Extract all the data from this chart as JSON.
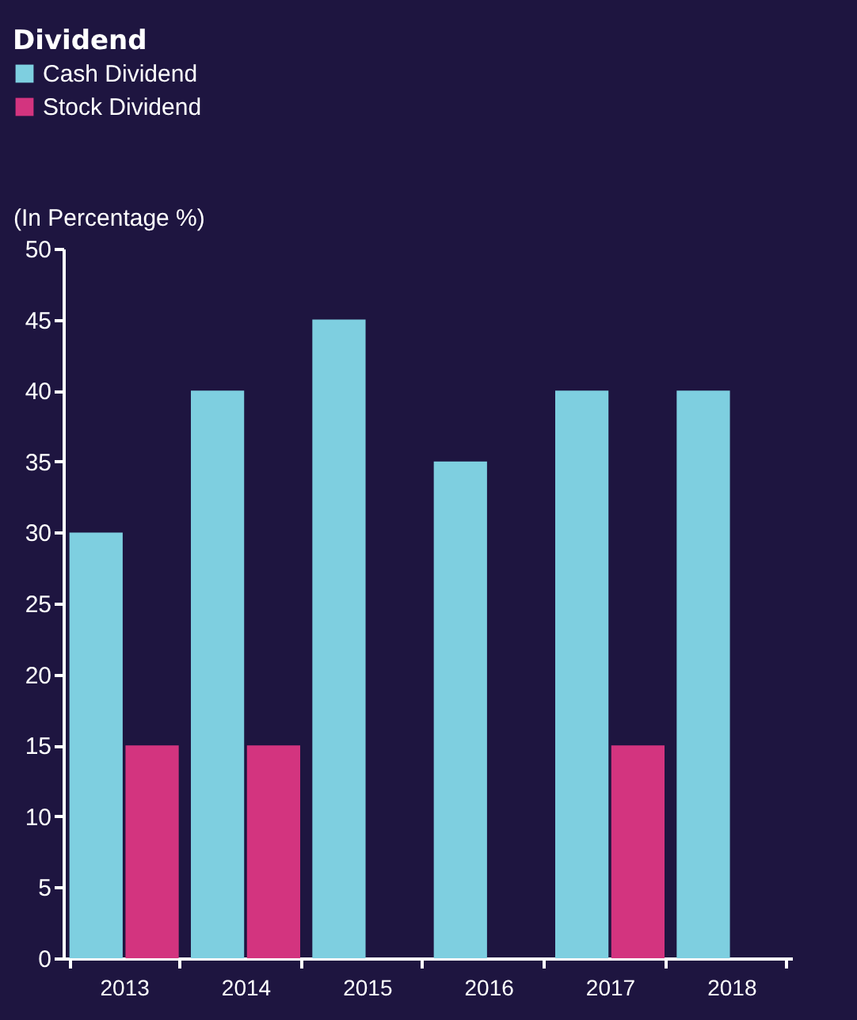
{
  "chart_data": {
    "type": "bar",
    "title": "Dividend",
    "ylabel": "(In Percentage %)",
    "categories": [
      "2013",
      "2014",
      "2015",
      "2016",
      "2017",
      "2018"
    ],
    "series": [
      {
        "name": "Cash Dividend",
        "color": "#7ecfe0",
        "values": [
          30,
          40,
          45,
          35,
          40,
          40
        ]
      },
      {
        "name": "Stock Dividend",
        "color": "#d3347f",
        "values": [
          15,
          15,
          null,
          null,
          15,
          null
        ]
      }
    ],
    "ylim": [
      0,
      50
    ],
    "yticks": [
      0,
      5,
      10,
      15,
      20,
      25,
      30,
      35,
      40,
      45,
      50
    ],
    "legend": "top left"
  }
}
